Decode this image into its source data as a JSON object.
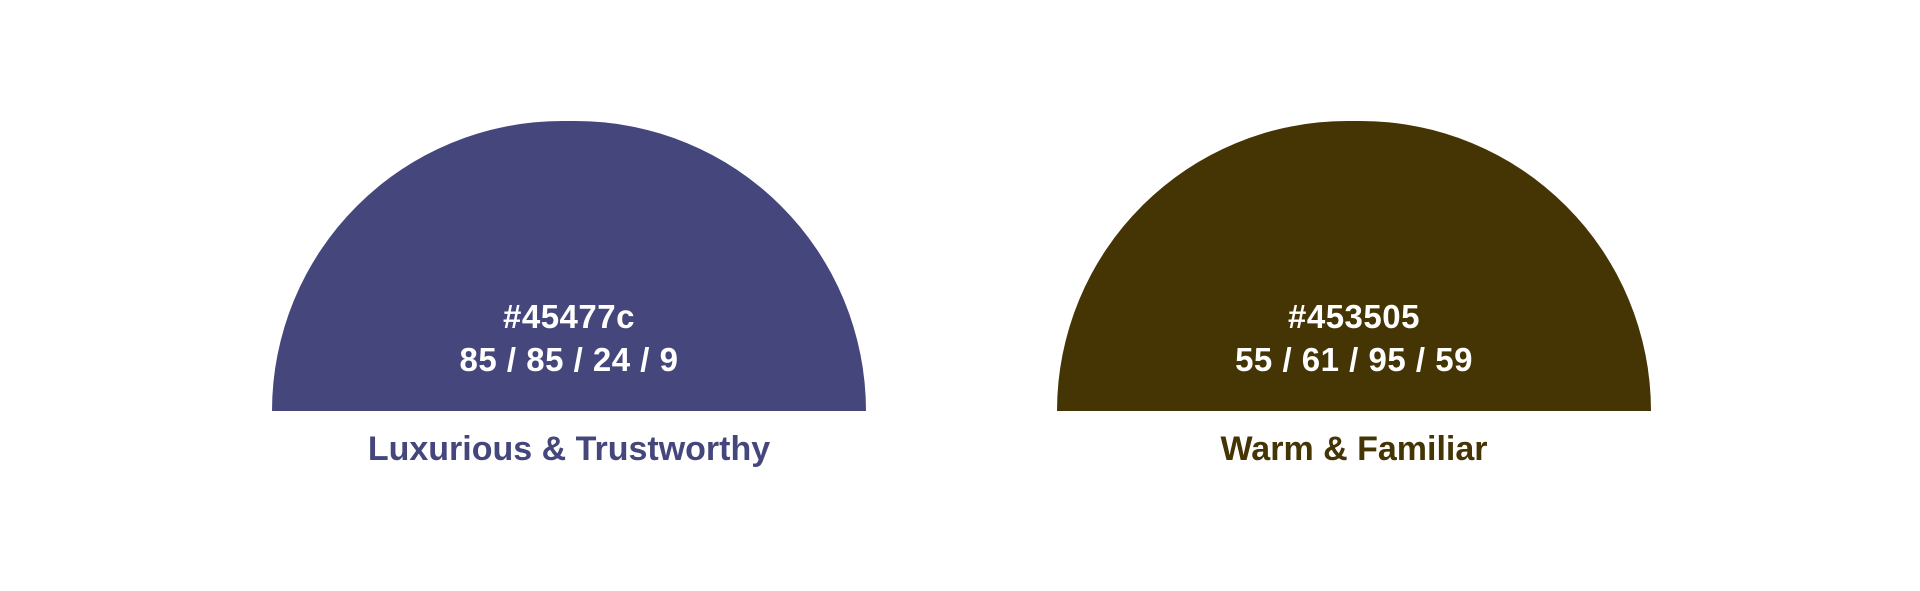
{
  "swatches": [
    {
      "color": "#45477c",
      "hex_label": "#45477c",
      "cmyk_label": "85 / 85 / 24 / 9",
      "caption": "Luxurious & Trustworthy"
    },
    {
      "color": "#453505",
      "hex_label": "#453505",
      "cmyk_label": "55 / 61 / 95 / 59",
      "caption": "Warm & Familiar"
    }
  ]
}
